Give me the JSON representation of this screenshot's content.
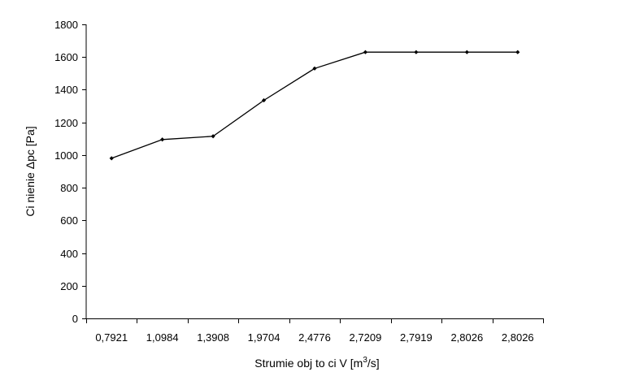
{
  "chart_data": {
    "type": "line",
    "categories": [
      "0,7921",
      "1,0984",
      "1,3908",
      "1,9704",
      "2,4776",
      "2,7209",
      "2,7919",
      "2,8026",
      "2,8026"
    ],
    "series": [
      {
        "values": [
          980,
          1095,
          1115,
          1335,
          1530,
          1630,
          1630,
          1630,
          1630
        ]
      }
    ],
    "xlabel_main": "Strumie  obj  to  ci V [m",
    "xlabel_sup": "3",
    "xlabel_end": "/s]",
    "ylabel": "Ci nienie Δpc [Pa]",
    "ylim": [
      0,
      1800
    ],
    "yticks": [
      0,
      200,
      400,
      600,
      800,
      1000,
      1200,
      1400,
      1600,
      1800
    ],
    "grid": false,
    "legend": "none",
    "line_color": "#000000"
  }
}
